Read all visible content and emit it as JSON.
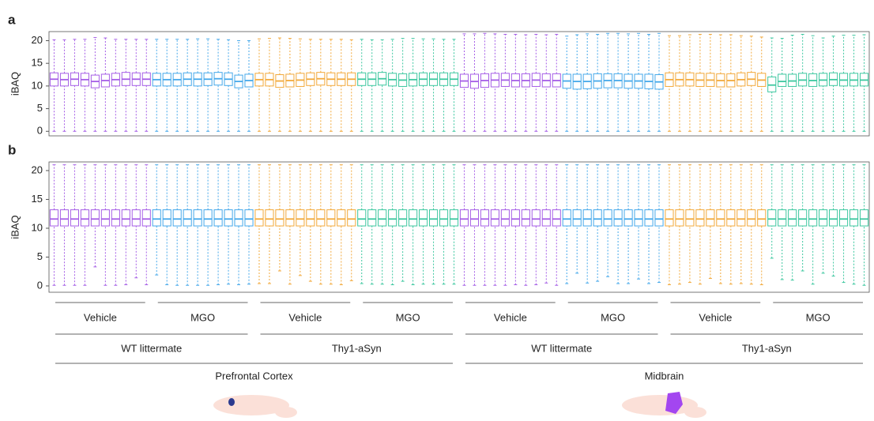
{
  "chart_data": [
    {
      "type": "box",
      "label": "a",
      "ylabel": "iBAQ",
      "ylim": [
        -1,
        22
      ],
      "yticks": [
        0,
        5,
        10,
        15,
        20
      ],
      "series": [
        {
          "color": "#a55ee6",
          "min": [
            0,
            0,
            0,
            0,
            0,
            0,
            0,
            0,
            0,
            0
          ],
          "q1": [
            10.0,
            10.0,
            10.1,
            10.0,
            9.6,
            9.8,
            10.0,
            10.1,
            10.1,
            10.1
          ],
          "median": [
            11.5,
            11.4,
            11.5,
            11.4,
            11.0,
            11.2,
            11.4,
            11.5,
            11.5,
            11.5
          ],
          "q3": [
            12.9,
            12.8,
            12.9,
            12.8,
            12.4,
            12.6,
            12.8,
            13.0,
            12.9,
            12.9
          ],
          "max": [
            20.2,
            20.2,
            20.3,
            20.3,
            20.7,
            20.6,
            20.3,
            20.3,
            20.3,
            20.3
          ]
        },
        {
          "color": "#45a8ea",
          "min": [
            0,
            0,
            0,
            0,
            0,
            0,
            0,
            0,
            0,
            0
          ],
          "q1": [
            10.0,
            10.0,
            10.0,
            10.1,
            10.0,
            10.1,
            10.2,
            10.1,
            9.6,
            9.8
          ],
          "median": [
            11.4,
            11.4,
            11.4,
            11.5,
            11.5,
            11.5,
            11.6,
            11.5,
            11.0,
            11.2
          ],
          "q3": [
            12.8,
            12.8,
            12.8,
            12.9,
            12.9,
            12.9,
            13.0,
            12.9,
            12.4,
            12.6
          ],
          "max": [
            20.3,
            20.3,
            20.3,
            20.3,
            20.4,
            20.4,
            20.3,
            20.2,
            20.0,
            20.0
          ]
        },
        {
          "color": "#f2a93b",
          "min": [
            0,
            0,
            0,
            0,
            0,
            0,
            0,
            0,
            0,
            0
          ],
          "q1": [
            10.0,
            10.0,
            9.7,
            9.8,
            9.9,
            10.1,
            10.2,
            10.1,
            10.1,
            10.1
          ],
          "median": [
            11.4,
            11.4,
            11.1,
            11.2,
            11.3,
            11.5,
            11.6,
            11.5,
            11.5,
            11.5
          ],
          "q3": [
            12.8,
            12.8,
            12.5,
            12.6,
            12.8,
            12.9,
            13.0,
            12.9,
            12.9,
            12.9
          ],
          "max": [
            20.4,
            20.5,
            20.6,
            20.5,
            20.4,
            20.3,
            20.3,
            20.3,
            20.3,
            20.2
          ]
        },
        {
          "color": "#3cc79f",
          "min": [
            0,
            0,
            0,
            0,
            0,
            0,
            0,
            0,
            0,
            0
          ],
          "q1": [
            10.1,
            10.1,
            10.2,
            10.0,
            9.9,
            10.0,
            10.1,
            10.1,
            10.1,
            10.1
          ],
          "median": [
            11.5,
            11.5,
            11.6,
            11.4,
            11.3,
            11.4,
            11.5,
            11.5,
            11.5,
            11.5
          ],
          "q3": [
            12.9,
            12.9,
            13.0,
            12.8,
            12.7,
            12.8,
            12.9,
            12.9,
            12.9,
            12.9
          ],
          "max": [
            20.3,
            20.2,
            20.2,
            20.3,
            20.5,
            20.5,
            20.4,
            20.4,
            20.3,
            20.3
          ]
        },
        {
          "color": "#a55ee6",
          "min": [
            0,
            0,
            0,
            0,
            0,
            0,
            0,
            0,
            0,
            0
          ],
          "q1": [
            9.7,
            9.5,
            9.7,
            9.8,
            9.9,
            9.8,
            9.8,
            9.9,
            9.8,
            9.8
          ],
          "median": [
            11.1,
            11.0,
            11.2,
            11.3,
            11.3,
            11.2,
            11.2,
            11.3,
            11.2,
            11.2
          ],
          "q3": [
            12.6,
            12.6,
            12.7,
            12.8,
            12.8,
            12.7,
            12.7,
            12.8,
            12.7,
            12.7
          ],
          "max": [
            21.5,
            21.5,
            21.6,
            21.5,
            21.4,
            21.4,
            21.3,
            21.4,
            21.3,
            21.4
          ]
        },
        {
          "color": "#45a8ea",
          "min": [
            0,
            0,
            0,
            0,
            0,
            0,
            0,
            0,
            0,
            0
          ],
          "q1": [
            9.5,
            9.3,
            9.4,
            9.5,
            9.6,
            9.6,
            9.5,
            9.5,
            9.4,
            9.3
          ],
          "median": [
            11.1,
            11.0,
            11.0,
            11.1,
            11.2,
            11.2,
            11.1,
            11.1,
            11.0,
            10.9
          ],
          "q3": [
            12.6,
            12.6,
            12.6,
            12.7,
            12.7,
            12.7,
            12.6,
            12.6,
            12.6,
            12.5
          ],
          "max": [
            21.0,
            21.3,
            21.5,
            21.4,
            21.6,
            21.6,
            21.5,
            21.6,
            21.4,
            21.6
          ]
        },
        {
          "color": "#f2a93b",
          "min": [
            0,
            0,
            0,
            0,
            0,
            0,
            0,
            0,
            0,
            0
          ],
          "q1": [
            9.9,
            10.0,
            10.0,
            9.9,
            9.9,
            9.8,
            9.8,
            10.0,
            10.1,
            9.9
          ],
          "median": [
            11.4,
            11.4,
            11.4,
            11.3,
            11.3,
            11.2,
            11.2,
            11.4,
            11.5,
            11.3
          ],
          "q3": [
            12.9,
            12.9,
            12.9,
            12.8,
            12.8,
            12.7,
            12.7,
            12.9,
            13.0,
            12.8
          ],
          "max": [
            21.1,
            21.1,
            21.3,
            21.4,
            21.4,
            21.3,
            21.3,
            21.1,
            21.0,
            20.8
          ]
        },
        {
          "color": "#3cc79f",
          "min": [
            0,
            0,
            0,
            0,
            0,
            0,
            0,
            0,
            0,
            0
          ],
          "q1": [
            8.7,
            9.9,
            9.9,
            10.0,
            9.9,
            10.0,
            10.1,
            10.0,
            10.0,
            10.0
          ],
          "median": [
            10.2,
            11.0,
            11.1,
            11.3,
            11.2,
            11.3,
            11.4,
            11.3,
            11.3,
            11.3
          ],
          "q3": [
            12.0,
            12.6,
            12.6,
            12.8,
            12.7,
            12.8,
            12.9,
            12.8,
            12.8,
            12.8
          ],
          "max": [
            20.6,
            20.5,
            21.2,
            21.4,
            21.1,
            20.6,
            21.0,
            21.2,
            21.2,
            21.3
          ]
        }
      ]
    },
    {
      "type": "box",
      "label": "b",
      "ylabel": "iBAQ",
      "ylim": [
        -1.1,
        21.5
      ],
      "yticks": [
        0,
        5,
        10,
        15,
        20
      ],
      "series": [
        {
          "color": "#a55ee6",
          "min": [
            0.1,
            0.1,
            0.1,
            0.1,
            3.3,
            0.1,
            0.1,
            0.2,
            1.4,
            0.2
          ],
          "q1": [
            10.4,
            10.4,
            10.4,
            10.4,
            10.4,
            10.4,
            10.4,
            10.4,
            10.4,
            10.4
          ],
          "median": [
            11.6,
            11.6,
            11.6,
            11.6,
            11.6,
            11.6,
            11.6,
            11.6,
            11.6,
            11.6
          ],
          "q3": [
            13.2,
            13.2,
            13.2,
            13.2,
            13.2,
            13.2,
            13.2,
            13.2,
            13.2,
            13.2
          ],
          "max": [
            21,
            21,
            21,
            21,
            21,
            21,
            21,
            21,
            21,
            21
          ]
        },
        {
          "color": "#45a8ea",
          "min": [
            1.9,
            0.2,
            0.1,
            0.1,
            0.1,
            0.1,
            0.2,
            0.3,
            0.2,
            0.3
          ],
          "q1": [
            10.4,
            10.4,
            10.4,
            10.4,
            10.4,
            10.4,
            10.4,
            10.4,
            10.4,
            10.4
          ],
          "median": [
            11.6,
            11.6,
            11.6,
            11.6,
            11.6,
            11.6,
            11.6,
            11.6,
            11.6,
            11.6
          ],
          "q3": [
            13.2,
            13.2,
            13.2,
            13.2,
            13.2,
            13.2,
            13.2,
            13.2,
            13.2,
            13.2
          ],
          "max": [
            21,
            21,
            21,
            21,
            21,
            21,
            21,
            21,
            21,
            21
          ]
        },
        {
          "color": "#f2a93b",
          "min": [
            0.4,
            0.4,
            2.6,
            0.3,
            1.8,
            0.8,
            0.3,
            0.3,
            0.2,
            0.9
          ],
          "q1": [
            10.4,
            10.4,
            10.4,
            10.4,
            10.4,
            10.4,
            10.4,
            10.4,
            10.4,
            10.4
          ],
          "median": [
            11.6,
            11.6,
            11.6,
            11.6,
            11.6,
            11.6,
            11.6,
            11.6,
            11.6,
            11.6
          ],
          "q3": [
            13.2,
            13.2,
            13.2,
            13.2,
            13.2,
            13.2,
            13.2,
            13.2,
            13.2,
            13.2
          ],
          "max": [
            21,
            21,
            21,
            21,
            21,
            21,
            21,
            21,
            21,
            21
          ]
        },
        {
          "color": "#3cc79f",
          "min": [
            0.4,
            0.3,
            0.3,
            0.2,
            0.8,
            0.2,
            0.3,
            0.3,
            0.3,
            0.3
          ],
          "q1": [
            10.4,
            10.4,
            10.4,
            10.4,
            10.4,
            10.4,
            10.4,
            10.4,
            10.4,
            10.4
          ],
          "median": [
            11.6,
            11.6,
            11.6,
            11.6,
            11.6,
            11.6,
            11.6,
            11.6,
            11.6,
            11.6
          ],
          "q3": [
            13.2,
            13.2,
            13.2,
            13.2,
            13.2,
            13.2,
            13.2,
            13.2,
            13.2,
            13.2
          ],
          "max": [
            21,
            21,
            21,
            21,
            21,
            21,
            21,
            21,
            21,
            21
          ]
        },
        {
          "color": "#a55ee6",
          "min": [
            0.1,
            0.1,
            0.1,
            0.1,
            0.1,
            0.2,
            0.1,
            0.2,
            0.5,
            0.1
          ],
          "q1": [
            10.4,
            10.4,
            10.4,
            10.4,
            10.4,
            10.4,
            10.4,
            10.4,
            10.4,
            10.4
          ],
          "median": [
            11.6,
            11.6,
            11.6,
            11.6,
            11.6,
            11.6,
            11.6,
            11.6,
            11.6,
            11.6
          ],
          "q3": [
            13.2,
            13.2,
            13.2,
            13.2,
            13.2,
            13.2,
            13.2,
            13.2,
            13.2,
            13.2
          ],
          "max": [
            21,
            21,
            21,
            21,
            21,
            21,
            21,
            21,
            21,
            21
          ]
        },
        {
          "color": "#45a8ea",
          "min": [
            0.4,
            2.2,
            0.5,
            0.8,
            1.6,
            0.4,
            0.4,
            1.2,
            0.4,
            0.6
          ],
          "q1": [
            10.4,
            10.4,
            10.4,
            10.4,
            10.4,
            10.4,
            10.4,
            10.4,
            10.4,
            10.4
          ],
          "median": [
            11.6,
            11.6,
            11.6,
            11.6,
            11.6,
            11.6,
            11.6,
            11.6,
            11.6,
            11.6
          ],
          "q3": [
            13.2,
            13.2,
            13.2,
            13.2,
            13.2,
            13.2,
            13.2,
            13.2,
            13.2,
            13.2
          ],
          "max": [
            21,
            21,
            21,
            21,
            21,
            21,
            21,
            21,
            21,
            21
          ]
        },
        {
          "color": "#f2a93b",
          "min": [
            0.2,
            0.3,
            0.6,
            0.3,
            1.3,
            0.4,
            0.3,
            0.4,
            0.3,
            0.2
          ],
          "q1": [
            10.4,
            10.4,
            10.4,
            10.4,
            10.4,
            10.4,
            10.4,
            10.4,
            10.4,
            10.4
          ],
          "median": [
            11.6,
            11.6,
            11.6,
            11.6,
            11.6,
            11.6,
            11.6,
            11.6,
            11.6,
            11.6
          ],
          "q3": [
            13.2,
            13.2,
            13.2,
            13.2,
            13.2,
            13.2,
            13.2,
            13.2,
            13.2,
            13.2
          ],
          "max": [
            21,
            21,
            21,
            21,
            21,
            21,
            21,
            21,
            21,
            21
          ]
        },
        {
          "color": "#3cc79f",
          "min": [
            4.8,
            1.1,
            1.0,
            2.6,
            0.3,
            2.2,
            1.7,
            0.6,
            0.3,
            0.1
          ],
          "q1": [
            10.4,
            10.4,
            10.4,
            10.4,
            10.4,
            10.4,
            10.4,
            10.4,
            10.4,
            10.4
          ],
          "median": [
            11.6,
            11.6,
            11.6,
            11.6,
            11.6,
            11.6,
            11.6,
            11.6,
            11.6,
            11.6
          ],
          "q3": [
            13.2,
            13.2,
            13.2,
            13.2,
            13.2,
            13.2,
            13.2,
            13.2,
            13.2,
            13.2
          ],
          "max": [
            21,
            21,
            21,
            21,
            21,
            21,
            21,
            21,
            21,
            21
          ]
        }
      ]
    }
  ],
  "x_groups": {
    "treatment": [
      "Vehicle",
      "MGO",
      "Vehicle",
      "MGO",
      "Vehicle",
      "MGO",
      "Vehicle",
      "MGO"
    ],
    "genotype": [
      "WT littermate",
      "Thy1-aSyn",
      "WT littermate",
      "Thy1-aSyn"
    ],
    "region": [
      "Prefrontal Cortex",
      "Midbrain"
    ]
  }
}
